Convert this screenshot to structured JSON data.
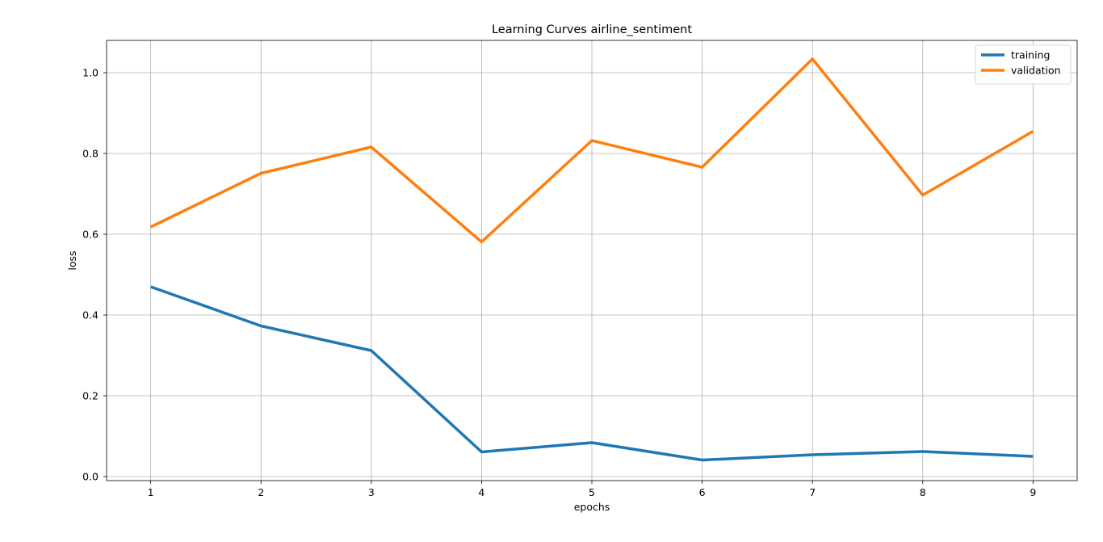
{
  "chart_data": {
    "type": "line",
    "title": "Learning Curves airline_sentiment",
    "xlabel": "epochs",
    "ylabel": "loss",
    "x": [
      1,
      2,
      3,
      4,
      5,
      6,
      7,
      8,
      9
    ],
    "xticks": [
      "1",
      "2",
      "3",
      "4",
      "5",
      "6",
      "7",
      "8",
      "9"
    ],
    "yticks": [
      "0.0",
      "0.2",
      "0.4",
      "0.6",
      "0.8",
      "1.0"
    ],
    "ytick_values": [
      0.0,
      0.2,
      0.4,
      0.6,
      0.8,
      1.0
    ],
    "xlim": [
      0.6,
      9.4
    ],
    "ylim": [
      -0.01,
      1.08
    ],
    "grid": true,
    "legend_position": "upper right",
    "series": [
      {
        "name": "training",
        "color": "#1f77b4",
        "values": [
          0.47,
          0.373,
          0.312,
          0.061,
          0.084,
          0.041,
          0.054,
          0.062,
          0.05
        ]
      },
      {
        "name": "validation",
        "color": "#ff7f0e",
        "values": [
          0.618,
          0.751,
          0.816,
          0.581,
          0.832,
          0.766,
          1.034,
          0.697,
          0.855
        ]
      }
    ]
  }
}
